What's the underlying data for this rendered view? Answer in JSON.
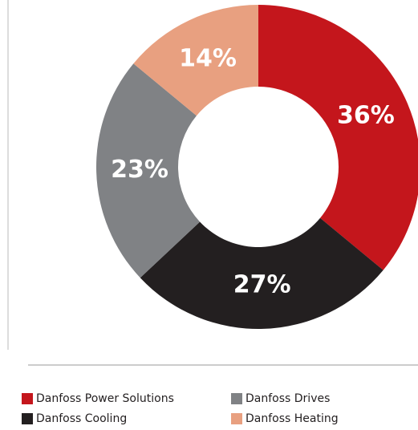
{
  "chart_data": {
    "type": "donut",
    "categories": [
      "Danfoss Power Solutions",
      "Danfoss Cooling",
      "Danfoss Drives",
      "Danfoss Heating"
    ],
    "values": [
      36,
      27,
      23,
      14
    ],
    "value_labels": [
      "36%",
      "27%",
      "23%",
      "14%"
    ],
    "colors": [
      "#c4161c",
      "#231f20",
      "#808285",
      "#e8a080"
    ],
    "legend": "bottom"
  }
}
